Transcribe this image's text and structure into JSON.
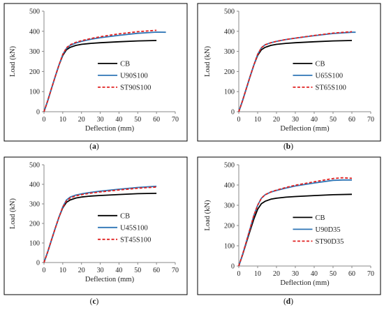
{
  "chart_data": [
    {
      "type": "line",
      "panel_label": "(a)",
      "panel_letter": "a",
      "xlabel": "Deflection (mm)",
      "ylabel": "Load (kN)",
      "xlim": [
        0,
        70
      ],
      "ylim": [
        0,
        500
      ],
      "xticks": [
        0,
        10,
        20,
        30,
        40,
        50,
        60,
        70
      ],
      "yticks": [
        0,
        100,
        200,
        300,
        400,
        500
      ],
      "grid": false,
      "legend_position": "center-right",
      "series": [
        {
          "name": "CB",
          "color": "#000000",
          "dash": "solid",
          "x": [
            0,
            2,
            4,
            6,
            8,
            10,
            12,
            14,
            17,
            20,
            25,
            30,
            40,
            50,
            60
          ],
          "y": [
            0,
            55,
            115,
            175,
            232,
            280,
            308,
            320,
            330,
            335,
            340,
            343,
            348,
            352,
            354
          ]
        },
        {
          "name": "U90S100",
          "color": "#2e75b6",
          "dash": "solid",
          "x": [
            0,
            2,
            4,
            6,
            8,
            10,
            12,
            14,
            17,
            20,
            25,
            30,
            40,
            50,
            60,
            65
          ],
          "y": [
            0,
            55,
            115,
            175,
            232,
            285,
            315,
            330,
            342,
            350,
            360,
            368,
            380,
            390,
            396,
            395
          ]
        },
        {
          "name": "ST90S100",
          "color": "#e02020",
          "dash": "dashed",
          "x": [
            0,
            2,
            4,
            6,
            8,
            10,
            12,
            14,
            17,
            20,
            25,
            30,
            40,
            50,
            60
          ],
          "y": [
            0,
            55,
            115,
            175,
            232,
            285,
            318,
            333,
            345,
            353,
            364,
            373,
            387,
            398,
            405
          ]
        }
      ]
    },
    {
      "type": "line",
      "panel_label": "(b)",
      "panel_letter": "b",
      "xlabel": "Deflection (mm)",
      "ylabel": "Load (kN)",
      "xlim": [
        0,
        70
      ],
      "ylim": [
        0,
        500
      ],
      "xticks": [
        0,
        10,
        20,
        30,
        40,
        50,
        60,
        70
      ],
      "yticks": [
        0,
        100,
        200,
        300,
        400,
        500
      ],
      "grid": false,
      "legend_position": "center-right",
      "series": [
        {
          "name": "CB",
          "color": "#000000",
          "dash": "solid",
          "x": [
            0,
            2,
            4,
            6,
            8,
            10,
            12,
            14,
            17,
            20,
            25,
            30,
            40,
            50,
            60
          ],
          "y": [
            0,
            55,
            115,
            175,
            232,
            280,
            308,
            320,
            330,
            335,
            340,
            343,
            348,
            352,
            354
          ]
        },
        {
          "name": "U65S100",
          "color": "#2e75b6",
          "dash": "solid",
          "x": [
            0,
            2,
            4,
            6,
            8,
            10,
            12,
            14,
            17,
            20,
            25,
            30,
            40,
            50,
            60,
            62
          ],
          "y": [
            0,
            55,
            115,
            175,
            232,
            285,
            318,
            333,
            343,
            350,
            359,
            366,
            378,
            389,
            395,
            395
          ]
        },
        {
          "name": "ST65S100",
          "color": "#e02020",
          "dash": "dashed",
          "x": [
            0,
            2,
            4,
            6,
            8,
            10,
            12,
            14,
            17,
            20,
            25,
            30,
            40,
            50,
            60
          ],
          "y": [
            0,
            55,
            115,
            175,
            232,
            285,
            318,
            333,
            343,
            350,
            359,
            366,
            379,
            391,
            398
          ]
        }
      ]
    },
    {
      "type": "line",
      "panel_label": "(c)",
      "panel_letter": "c",
      "xlabel": "Deflection (mm)",
      "ylabel": "Load (kN)",
      "xlim": [
        0,
        70
      ],
      "ylim": [
        0,
        500
      ],
      "xticks": [
        0,
        10,
        20,
        30,
        40,
        50,
        60,
        70
      ],
      "yticks": [
        0,
        100,
        200,
        300,
        400,
        500
      ],
      "grid": false,
      "legend_position": "center-right",
      "series": [
        {
          "name": "CB",
          "color": "#000000",
          "dash": "solid",
          "x": [
            0,
            2,
            4,
            6,
            8,
            10,
            12,
            14,
            17,
            20,
            25,
            30,
            40,
            50,
            60
          ],
          "y": [
            0,
            55,
            115,
            175,
            232,
            280,
            308,
            320,
            330,
            335,
            340,
            343,
            348,
            352,
            354
          ]
        },
        {
          "name": "U45S100",
          "color": "#2e75b6",
          "dash": "solid",
          "x": [
            0,
            2,
            4,
            6,
            8,
            10,
            12,
            14,
            17,
            20,
            25,
            30,
            40,
            50,
            60
          ],
          "y": [
            0,
            55,
            115,
            175,
            232,
            285,
            320,
            335,
            345,
            351,
            359,
            365,
            375,
            384,
            390
          ]
        },
        {
          "name": "ST45S100",
          "color": "#e02020",
          "dash": "dashed",
          "x": [
            0,
            2,
            4,
            6,
            8,
            10,
            12,
            14,
            17,
            20,
            25,
            30,
            40,
            50,
            60
          ],
          "y": [
            0,
            55,
            115,
            175,
            232,
            283,
            315,
            330,
            341,
            347,
            355,
            361,
            371,
            380,
            386
          ]
        }
      ]
    },
    {
      "type": "line",
      "panel_label": "(d)",
      "panel_letter": "d",
      "xlabel": "Deflection (mm)",
      "ylabel": "Load (kN)",
      "xlim": [
        0,
        70
      ],
      "ylim": [
        0,
        500
      ],
      "xticks": [
        0,
        10,
        20,
        30,
        40,
        50,
        60,
        70
      ],
      "yticks": [
        0,
        100,
        200,
        300,
        400,
        500
      ],
      "grid": false,
      "legend_position": "center-right",
      "series": [
        {
          "name": "CB",
          "color": "#000000",
          "dash": "solid",
          "x": [
            0,
            2,
            4,
            6,
            8,
            10,
            12,
            14,
            17,
            20,
            25,
            30,
            40,
            50,
            60
          ],
          "y": [
            0,
            55,
            115,
            175,
            232,
            280,
            308,
            320,
            330,
            335,
            340,
            343,
            348,
            352,
            354
          ]
        },
        {
          "name": "U90D35",
          "color": "#2e75b6",
          "dash": "solid",
          "x": [
            0,
            2,
            4,
            6,
            8,
            10,
            12,
            14,
            17,
            20,
            25,
            30,
            40,
            50,
            55,
            60
          ],
          "y": [
            0,
            57,
            120,
            185,
            250,
            300,
            335,
            352,
            365,
            373,
            385,
            395,
            410,
            423,
            425,
            425
          ]
        },
        {
          "name": "ST90D35",
          "color": "#e02020",
          "dash": "dashed",
          "x": [
            0,
            2,
            4,
            6,
            8,
            10,
            12,
            14,
            17,
            20,
            25,
            30,
            40,
            50,
            55,
            60
          ],
          "y": [
            0,
            57,
            120,
            185,
            250,
            300,
            335,
            352,
            366,
            375,
            388,
            399,
            416,
            432,
            436,
            433
          ]
        }
      ]
    }
  ]
}
